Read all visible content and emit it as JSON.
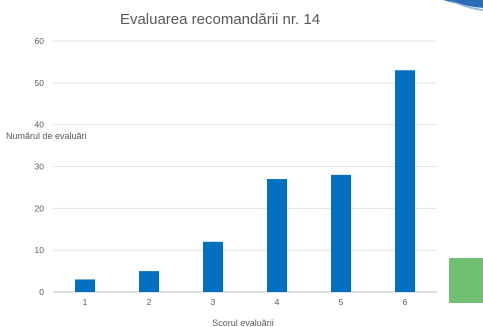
{
  "chart_data": {
    "type": "bar",
    "title": "Evaluarea recomandării nr. 14",
    "xlabel": "Scorul evaluării",
    "ylabel": "Numărul de evaluări",
    "categories": [
      "1",
      "2",
      "3",
      "4",
      "5",
      "6"
    ],
    "values": [
      3,
      5,
      12,
      27,
      28,
      53
    ],
    "ylim": [
      0,
      60
    ],
    "yticks": [
      "0",
      "10",
      "20",
      "30",
      "40",
      "50",
      "60"
    ],
    "grid": true,
    "legend": "none",
    "bar_color": "#0070C0"
  },
  "decor": {
    "side_tile_color": "#70BF73",
    "corner_color": "#2A6FB5"
  }
}
